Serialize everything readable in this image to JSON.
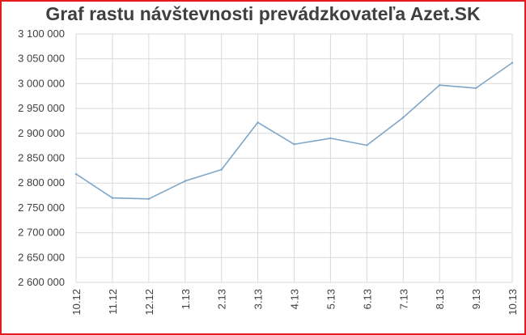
{
  "chart_data": {
    "type": "line",
    "title": "Graf rastu návštevnosti prevádzkovateľa Azet.SK",
    "xlabel": "",
    "ylabel": "",
    "categories": [
      "10.12",
      "11.12",
      "12.12",
      "1.13",
      "2.13",
      "3.13",
      "4.13",
      "5.13",
      "6.13",
      "7.13",
      "8.13",
      "9.13",
      "10.13"
    ],
    "values": [
      2818000,
      2770000,
      2768000,
      2804000,
      2827000,
      2922000,
      2878000,
      2890000,
      2876000,
      2932000,
      2997000,
      2991000,
      3042000
    ],
    "ylim": [
      2600000,
      3100000
    ],
    "yticks": [
      2600000,
      2650000,
      2700000,
      2750000,
      2800000,
      2850000,
      2900000,
      2950000,
      3000000,
      3050000,
      3100000
    ],
    "ytick_labels": [
      "2 600 000",
      "2 650 000",
      "2 700 000",
      "2 750 000",
      "2 800 000",
      "2 850 000",
      "2 900 000",
      "2 950 000",
      "3 000 000",
      "3 050 000",
      "3 100 000"
    ],
    "grid": true,
    "legend": "none",
    "colors": {
      "line": "#7ea6c8",
      "grid": "#d9d9d9",
      "frame": "#e41a1c",
      "text": "#404040"
    }
  }
}
